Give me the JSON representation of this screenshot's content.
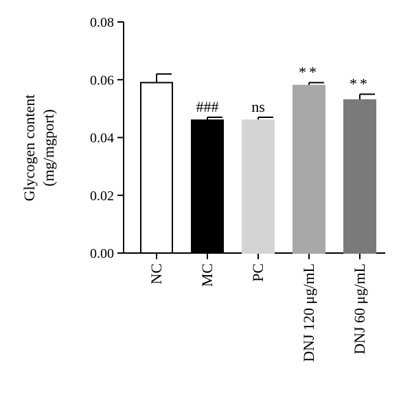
{
  "chart_data": {
    "type": "bar",
    "ylabel_line1": "Glycogen content",
    "ylabel_line2": "(mg/mgport)",
    "ylim": [
      0,
      0.08
    ],
    "yticks": [
      "0.00",
      "0.02",
      "0.04",
      "0.06",
      "0.08"
    ],
    "categories": [
      "NC",
      "MC",
      "PC",
      "DNJ 120 μg/mL",
      "DNJ 60 μg/mL"
    ],
    "values": [
      0.059,
      0.046,
      0.046,
      0.058,
      0.053
    ],
    "errors": [
      0.003,
      0.001,
      0.001,
      0.001,
      0.002
    ],
    "annotations": [
      "",
      "###",
      "ns",
      "**",
      "**"
    ],
    "colors": [
      "#ffffff",
      "#000000",
      "#d4d4d4",
      "#a8a8a8",
      "#7a7a7a"
    ]
  }
}
